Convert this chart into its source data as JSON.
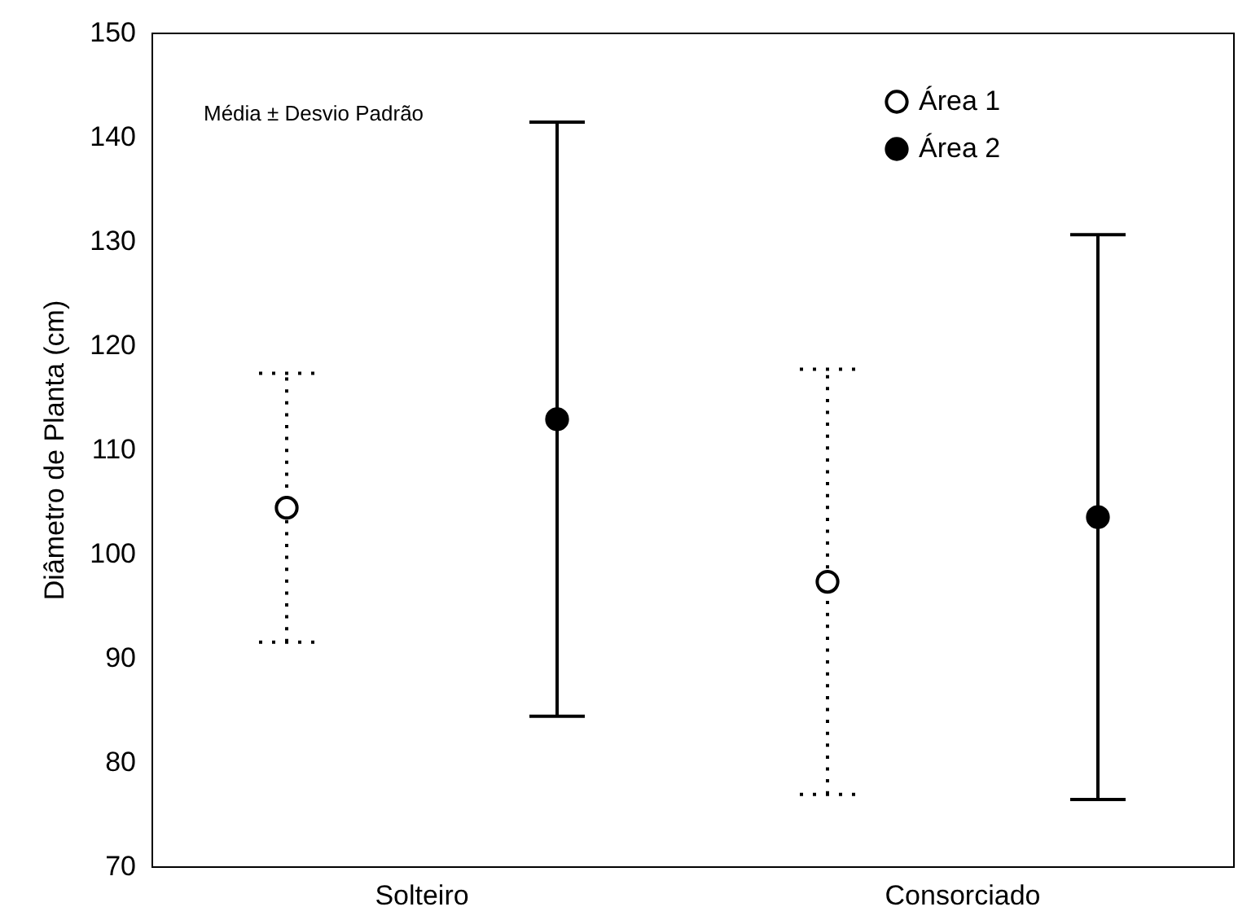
{
  "chart_data": {
    "type": "scatter",
    "ylabel": "Diâmetro de Planta (cm)",
    "categories": [
      "Solteiro",
      "Consorciado"
    ],
    "series": [
      {
        "name": "Área 1",
        "color": "#000000",
        "values": [
          104.4,
          97.3
        ],
        "errors": [
          12.9,
          20.4
        ],
        "line_style": "dotted"
      },
      {
        "name": "Área 2",
        "color": "#000000",
        "values": [
          112.9,
          103.5
        ],
        "errors": [
          28.5,
          27.1
        ],
        "line_style": "solid"
      }
    ],
    "ylim": [
      70,
      150
    ],
    "yticks": [
      70,
      80,
      90,
      100,
      110,
      120,
      130,
      140,
      150
    ],
    "grid": false,
    "legend": "top right",
    "marker": "circle",
    "annotations": [
      "Média ± Desvio Padrão"
    ]
  }
}
